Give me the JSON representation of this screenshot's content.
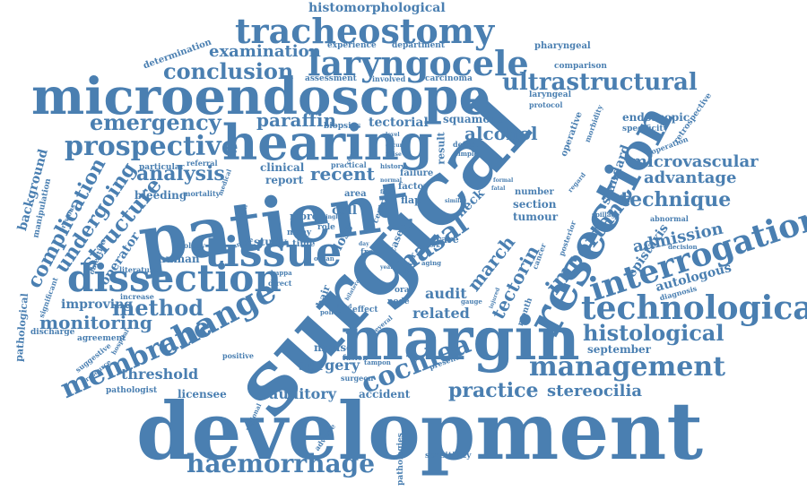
{
  "cloud": {
    "color": "#4a7fb1",
    "words": [
      {
        "text": "surgical"
      },
      {
        "text": "development"
      },
      {
        "text": "patient"
      },
      {
        "text": "margin"
      },
      {
        "text": "microendoscope"
      },
      {
        "text": "hearing"
      },
      {
        "text": "resection"
      },
      {
        "text": "tissue"
      },
      {
        "text": "dissection"
      },
      {
        "text": "tracheostomy"
      },
      {
        "text": "laryngocele"
      },
      {
        "text": "technological"
      },
      {
        "text": "interrogation"
      },
      {
        "text": "management"
      },
      {
        "text": "prospective"
      },
      {
        "text": "change"
      },
      {
        "text": "ultrastructural"
      },
      {
        "text": "membrane"
      },
      {
        "text": "cochlea"
      },
      {
        "text": "haemorrhage"
      },
      {
        "text": "nasal"
      },
      {
        "text": "histological"
      },
      {
        "text": "method"
      },
      {
        "text": "emergency"
      },
      {
        "text": "conclusion"
      },
      {
        "text": "structure"
      },
      {
        "text": "important"
      },
      {
        "text": "practice"
      },
      {
        "text": "technique"
      },
      {
        "text": "analysis"
      },
      {
        "text": "complication"
      },
      {
        "text": "undergoing"
      },
      {
        "text": "monitoring"
      },
      {
        "text": "stereocilia"
      },
      {
        "text": "alcohol"
      },
      {
        "text": "march"
      },
      {
        "text": "paraffin"
      },
      {
        "text": "recent"
      },
      {
        "text": "tectorin"
      },
      {
        "text": "microvascular"
      },
      {
        "text": "advantage"
      },
      {
        "text": "admission"
      },
      {
        "text": "examination"
      },
      {
        "text": "histomorphological"
      },
      {
        "text": "threshold"
      },
      {
        "text": "auditory"
      },
      {
        "text": "surgery"
      },
      {
        "text": "related"
      },
      {
        "text": "audit"
      },
      {
        "text": "tectorial"
      },
      {
        "text": "epistaxis"
      },
      {
        "text": "autologous"
      },
      {
        "text": "background"
      },
      {
        "text": "improving"
      },
      {
        "text": "operator"
      },
      {
        "text": "bleeding"
      },
      {
        "text": "clinical"
      },
      {
        "text": "report"
      },
      {
        "text": "standard"
      },
      {
        "text": "endoscopic"
      },
      {
        "text": "september"
      },
      {
        "text": "cell"
      },
      {
        "text": "loss"
      },
      {
        "text": "study"
      },
      {
        "text": "human"
      },
      {
        "text": "neck"
      },
      {
        "text": "section"
      },
      {
        "text": "tumour"
      },
      {
        "text": "licensee"
      },
      {
        "text": "mouse"
      },
      {
        "text": "accident"
      },
      {
        "text": "squamous"
      },
      {
        "text": "biopsies"
      },
      {
        "text": "result"
      },
      {
        "text": "failure"
      },
      {
        "text": "factor"
      },
      {
        "text": "flap"
      },
      {
        "text": "determination"
      },
      {
        "text": "experience"
      },
      {
        "text": "department"
      },
      {
        "text": "assessment"
      },
      {
        "text": "involved"
      },
      {
        "text": "carcinoma"
      },
      {
        "text": "pharyngeal"
      },
      {
        "text": "comparison"
      },
      {
        "text": "laryngeal"
      },
      {
        "text": "protocol"
      },
      {
        "text": "operative"
      },
      {
        "text": "morbidity"
      },
      {
        "text": "specificity"
      },
      {
        "text": "operation"
      },
      {
        "text": "retrospective"
      },
      {
        "text": "referral"
      },
      {
        "text": "particular"
      },
      {
        "text": "practical"
      },
      {
        "text": "history"
      },
      {
        "text": "defect"
      },
      {
        "text": "simple"
      },
      {
        "text": "mortality"
      },
      {
        "text": "medical"
      },
      {
        "text": "manipulation"
      },
      {
        "text": "previous"
      },
      {
        "text": "objective"
      },
      {
        "text": "etiology"
      },
      {
        "text": "literature"
      },
      {
        "text": "sample"
      },
      {
        "text": "general"
      },
      {
        "text": "more"
      },
      {
        "text": "role"
      },
      {
        "text": "many"
      },
      {
        "text": "time"
      },
      {
        "text": "area"
      },
      {
        "text": "central"
      },
      {
        "text": "case"
      },
      {
        "text": "rare"
      },
      {
        "text": "number"
      },
      {
        "text": "regard"
      },
      {
        "text": "spillage"
      },
      {
        "text": "abnormal"
      },
      {
        "text": "decision"
      },
      {
        "text": "diagnosis"
      },
      {
        "text": "posterior"
      },
      {
        "text": "cancer"
      },
      {
        "text": "month"
      },
      {
        "text": "hair"
      },
      {
        "text": "free"
      },
      {
        "text": "direct"
      },
      {
        "text": "kappa"
      },
      {
        "text": "organ"
      },
      {
        "text": "inter"
      },
      {
        "text": "aging"
      },
      {
        "text": "oral"
      },
      {
        "text": "node"
      },
      {
        "text": "effect"
      },
      {
        "text": "policy"
      },
      {
        "text": "several"
      },
      {
        "text": "gauge"
      },
      {
        "text": "fusion"
      },
      {
        "text": "tampon"
      },
      {
        "text": "surgeon"
      },
      {
        "text": "present"
      },
      {
        "text": "positive"
      },
      {
        "text": "pathologist"
      },
      {
        "text": "suggestive"
      },
      {
        "text": "agreement"
      },
      {
        "text": "discharge"
      },
      {
        "text": "increase"
      },
      {
        "text": "significant"
      },
      {
        "text": "pathological"
      },
      {
        "text": "resource"
      },
      {
        "text": "hospital"
      },
      {
        "text": "regional"
      },
      {
        "text": "adverse"
      },
      {
        "text": "pathologies"
      },
      {
        "text": "sensitivity"
      },
      {
        "text": "normal"
      },
      {
        "text": "formal"
      },
      {
        "text": "similar"
      },
      {
        "text": "fatal"
      },
      {
        "text": "day"
      },
      {
        "text": "year"
      },
      {
        "text": "work"
      },
      {
        "text": "level"
      },
      {
        "text": "occur"
      },
      {
        "text": "head"
      },
      {
        "text": "noise"
      },
      {
        "text": "concept"
      },
      {
        "text": "fifty"
      },
      {
        "text": "injured"
      },
      {
        "text": "bilateral"
      },
      {
        "text": "single"
      }
    ]
  }
}
